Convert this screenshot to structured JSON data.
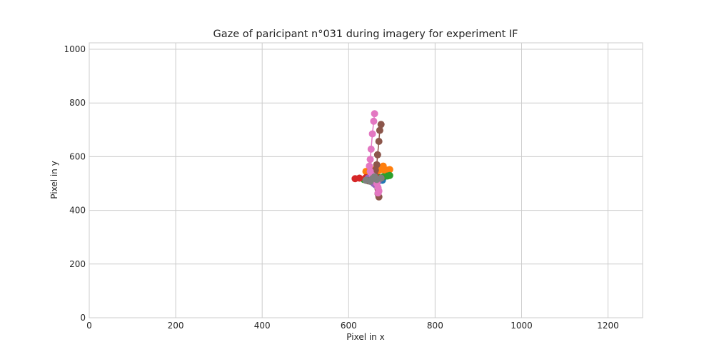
{
  "chart_data": {
    "type": "scatter",
    "title": "Gaze of paricipant n°031 during imagery for experiment IF",
    "xlabel": "Pixel in x",
    "ylabel": "Pixel in y",
    "xlim": [
      0,
      1280
    ],
    "ylim": [
      0,
      1024
    ],
    "xticks": [
      0,
      200,
      400,
      600,
      800,
      1000,
      1200
    ],
    "yticks": [
      0,
      200,
      400,
      600,
      800,
      1000
    ],
    "grid": true,
    "legend": "none",
    "series": [
      {
        "color": "#1f77b4",
        "points": [
          [
            650,
            515
          ],
          [
            660,
            505
          ],
          [
            670,
            510
          ],
          [
            680,
            520
          ],
          [
            665,
            500
          ],
          [
            655,
            512
          ],
          [
            672,
            518
          ],
          [
            645,
            520
          ],
          [
            662,
            508
          ],
          [
            678,
            512
          ]
        ]
      },
      {
        "color": "#ff7f0e",
        "points": [
          [
            640,
            545
          ],
          [
            650,
            550
          ],
          [
            660,
            552
          ],
          [
            670,
            548
          ],
          [
            680,
            565
          ],
          [
            690,
            550
          ],
          [
            695,
            552
          ],
          [
            655,
            540
          ],
          [
            665,
            555
          ],
          [
            685,
            545
          ],
          [
            675,
            553
          ]
        ]
      },
      {
        "color": "#2ca02c",
        "points": [
          [
            640,
            512
          ],
          [
            650,
            518
          ],
          [
            660,
            520
          ],
          [
            670,
            522
          ],
          [
            680,
            525
          ],
          [
            690,
            528
          ],
          [
            695,
            530
          ],
          [
            635,
            515
          ]
        ]
      },
      {
        "color": "#d62728",
        "points": [
          [
            615,
            518
          ],
          [
            625,
            520
          ],
          [
            640,
            522
          ],
          [
            655,
            525
          ],
          [
            665,
            522
          ],
          [
            675,
            520
          ],
          [
            660,
            540
          ],
          [
            650,
            518
          ]
        ]
      },
      {
        "color": "#9467bd",
        "points": [
          [
            645,
            520
          ],
          [
            650,
            510
          ],
          [
            655,
            515
          ],
          [
            660,
            505
          ],
          [
            665,
            512
          ],
          [
            658,
            500
          ],
          [
            662,
            495
          ],
          [
            668,
            508
          ]
        ]
      },
      {
        "color": "#8c564b",
        "points": [
          [
            675,
            720
          ],
          [
            672,
            698
          ],
          [
            670,
            657
          ],
          [
            667,
            607
          ],
          [
            665,
            570
          ],
          [
            662,
            550
          ],
          [
            660,
            530
          ],
          [
            663,
            520
          ],
          [
            665,
            500
          ],
          [
            668,
            480
          ],
          [
            668,
            462
          ],
          [
            670,
            450
          ],
          [
            655,
            520
          ],
          [
            645,
            510
          ]
        ]
      },
      {
        "color": "#e377c2",
        "points": [
          [
            660,
            760
          ],
          [
            658,
            732
          ],
          [
            655,
            685
          ],
          [
            652,
            628
          ],
          [
            650,
            590
          ],
          [
            648,
            565
          ],
          [
            650,
            545
          ],
          [
            655,
            530
          ],
          [
            660,
            515
          ],
          [
            665,
            500
          ],
          [
            668,
            485
          ],
          [
            670,
            472
          ],
          [
            668,
            465
          ]
        ]
      },
      {
        "color": "#7f7f7f",
        "points": [
          [
            640,
            512
          ],
          [
            655,
            518
          ],
          [
            665,
            515
          ],
          [
            675,
            520
          ],
          [
            660,
            525
          ],
          [
            650,
            508
          ]
        ]
      }
    ]
  }
}
